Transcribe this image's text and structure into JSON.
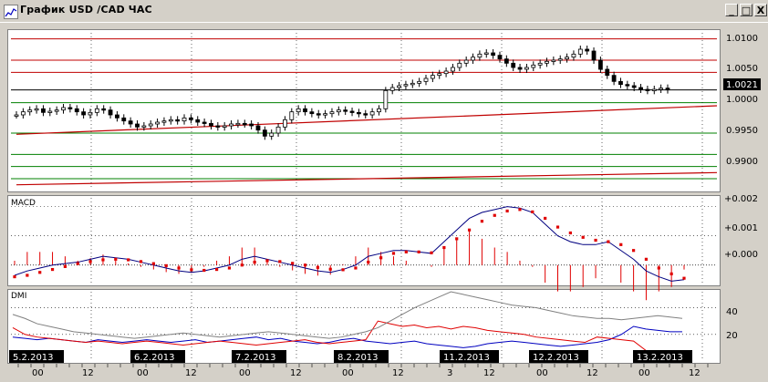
{
  "window": {
    "title": "График USD /CAD  ЧАС",
    "buttons": {
      "minimize": "_",
      "maximize": "□",
      "close": "X"
    }
  },
  "price_panel": {
    "y_ticks": [
      "1.0100",
      "1.0050",
      "1.0000",
      "0.9950",
      "0.9900"
    ],
    "current_price": "1.0021"
  },
  "macd_panel": {
    "label": "MACD",
    "y_ticks": [
      "+0.002",
      "+0.001",
      "+0.000"
    ]
  },
  "dmi_panel": {
    "label": "DMI",
    "y_ticks": [
      "40",
      "20"
    ]
  },
  "time_axis": {
    "dates": [
      "5.2.2013",
      "6.2.2013",
      "7.2.2013",
      "8.2.2013",
      "11.2.2013",
      "12.2.2013",
      "13.2.2013"
    ],
    "hours": [
      "00",
      "12",
      "00",
      "12",
      "00",
      "12",
      "00",
      "12",
      "3",
      "12",
      "00",
      "12",
      "00",
      "12"
    ]
  },
  "colors": {
    "candle": "#000000",
    "resistance": "#c00000",
    "support": "#008000",
    "trendline": "#c00000",
    "macd_line": "#000080",
    "macd_signal": "#e00000",
    "histogram": "#e00000",
    "dmi_plus": "#0000c0",
    "dmi_minus": "#e00000",
    "adx": "#808080"
  },
  "chart_data": [
    {
      "type": "candlestick",
      "title": "График USD /CAD  ЧАС",
      "ylim": [
        0.986,
        1.0115
      ],
      "current_price": 1.0021,
      "closes": [
        0.998,
        0.9985,
        0.9988,
        0.999,
        0.9984,
        0.9986,
        0.9988,
        0.9992,
        0.999,
        0.9985,
        0.998,
        0.9984,
        0.999,
        0.9988,
        0.998,
        0.9975,
        0.997,
        0.9965,
        0.996,
        0.9962,
        0.9965,
        0.9968,
        0.997,
        0.9972,
        0.997,
        0.9975,
        0.9972,
        0.9968,
        0.9966,
        0.9962,
        0.996,
        0.9962,
        0.9965,
        0.9966,
        0.9965,
        0.9962,
        0.9955,
        0.9945,
        0.995,
        0.996,
        0.9972,
        0.9985,
        0.999,
        0.9985,
        0.9982,
        0.998,
        0.9982,
        0.9985,
        0.9988,
        0.9986,
        0.9984,
        0.9982,
        0.998,
        0.9985,
        0.999,
        1.002,
        1.0025,
        1.0028,
        1.003,
        1.0032,
        1.0035,
        1.004,
        1.0045,
        1.0048,
        1.0052,
        1.0058,
        1.0065,
        1.007,
        1.0075,
        1.008,
        1.0082,
        1.0078,
        1.0072,
        1.0065,
        1.0058,
        1.0055,
        1.0058,
        1.0062,
        1.0065,
        1.0068,
        1.007,
        1.0072,
        1.0075,
        1.008,
        1.0088,
        1.0085,
        1.007,
        1.0055,
        1.0045,
        1.0035,
        1.003,
        1.0028,
        1.0025,
        1.0022,
        1.002,
        1.0022,
        1.0024,
        1.0021
      ],
      "resistance_levels": [
        1.0105,
        1.007,
        1.005
      ],
      "support_levels": [
        1.0,
        0.995,
        0.9915,
        0.9895,
        0.9875
      ],
      "current_price_line": 1.0021,
      "trendlines": [
        {
          "from": [
            0,
            0.9948
          ],
          "to": [
            97,
            0.9995
          ]
        },
        {
          "from": [
            0,
            0.9865
          ],
          "to": [
            97,
            0.9885
          ]
        }
      ]
    },
    {
      "type": "line",
      "label": "MACD",
      "ylim": [
        -0.0006,
        0.0023
      ],
      "series": [
        {
          "values": [
            -0.00035,
            -0.0002,
            -0.0001,
            0.0,
            5e-05,
            0.0001,
            0.0002,
            0.0003,
            0.00025,
            0.0002,
            0.0001,
            0.0,
            -0.0001,
            -0.0002,
            -0.00025,
            -0.0002,
            -0.0001,
            0.0,
            0.0002,
            0.0003,
            0.0002,
            0.0001,
            0.0,
            -0.0001,
            -0.0002,
            -0.00025,
            -0.00015,
            0.0,
            0.0003,
            0.0004,
            0.0005,
            0.0005,
            0.00045,
            0.0004,
            0.0008,
            0.0012,
            0.0016,
            0.0018,
            0.0019,
            0.002,
            0.00195,
            0.0018,
            0.0014,
            0.001,
            0.0008,
            0.0007,
            0.0007,
            0.0008,
            0.0005,
            0.0002,
            -0.0002,
            -0.0004,
            -0.00055,
            -0.0005
          ]
        },
        {
          "values": [
            -0.0004,
            -0.00035,
            -0.00025,
            -0.00015,
            -5e-05,
            5e-05,
            0.00012,
            0.00018,
            0.0002,
            0.00018,
            0.00012,
            5e-05,
            -2e-05,
            -0.0001,
            -0.00016,
            -0.00018,
            -0.00015,
            -0.0001,
            0.0,
            0.0001,
            0.00015,
            0.00012,
            6e-05,
            0.0,
            -8e-05,
            -0.00014,
            -0.00016,
            -0.0001,
            0.0001,
            0.00025,
            0.0004,
            0.00045,
            0.00045,
            0.00042,
            0.0006,
            0.0009,
            0.0012,
            0.0015,
            0.0017,
            0.00185,
            0.0019,
            0.00182,
            0.0016,
            0.0013,
            0.0011,
            0.00095,
            0.00085,
            0.0008,
            0.0007,
            0.0005,
            0.0002,
            -0.0001,
            -0.0003,
            -0.00045
          ]
        }
      ]
    },
    {
      "type": "line",
      "label": "DMI",
      "ylim": [
        0,
        52
      ],
      "series": [
        {
          "values": [
            18,
            17,
            16,
            17,
            16,
            15,
            14,
            16,
            15,
            14,
            15,
            16,
            15,
            14,
            15,
            16,
            14,
            15,
            16,
            17,
            18,
            16,
            17,
            15,
            14,
            13,
            14,
            16,
            17,
            15,
            14,
            13,
            14,
            15,
            13,
            12,
            11,
            10,
            11,
            13,
            14,
            15,
            14,
            13,
            12,
            11,
            12,
            13,
            14,
            16,
            20,
            26,
            24,
            23,
            22,
            22
          ]
        },
        {
          "values": [
            25,
            20,
            18,
            17,
            16,
            15,
            14,
            15,
            14,
            13,
            14,
            15,
            14,
            13,
            12,
            13,
            14,
            15,
            14,
            13,
            12,
            13,
            14,
            15,
            16,
            14,
            13,
            14,
            15,
            16,
            30,
            28,
            26,
            27,
            25,
            26,
            24,
            26,
            25,
            23,
            22,
            21,
            20,
            18,
            17,
            16,
            15,
            14,
            18,
            17,
            16,
            15,
            8,
            6,
            5,
            6
          ]
        },
        {
          "values": [
            35,
            32,
            28,
            26,
            24,
            22,
            21,
            20,
            19,
            18,
            17,
            18,
            19,
            20,
            21,
            20,
            19,
            18,
            19,
            20,
            21,
            22,
            21,
            20,
            19,
            18,
            17,
            18,
            20,
            22,
            25,
            30,
            35,
            40,
            44,
            48,
            52,
            50,
            48,
            46,
            44,
            42,
            41,
            40,
            38,
            36,
            34,
            33,
            32,
            32,
            31,
            32,
            33,
            34,
            33,
            32
          ]
        }
      ]
    }
  ]
}
